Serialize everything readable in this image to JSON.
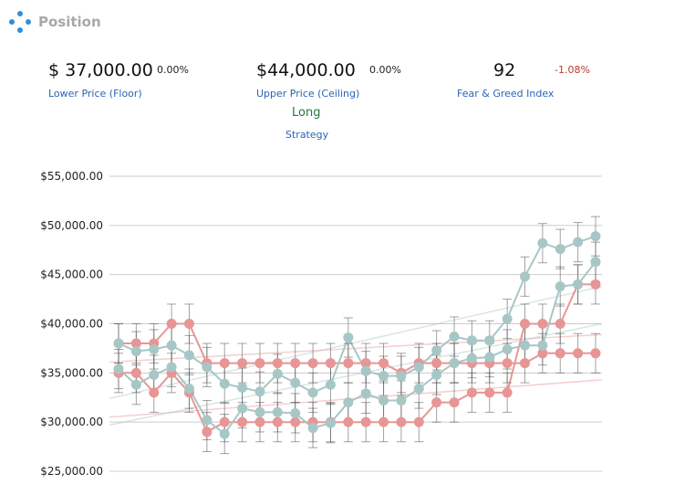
{
  "header": {
    "title": "Position",
    "icon": "position-icon"
  },
  "metrics": {
    "floor": {
      "value": "$ 37,000.00",
      "change": "0.00%",
      "label": "Lower Price (Floor)"
    },
    "ceiling": {
      "value": "$44,000.00",
      "change": "0.00%",
      "label": "Upper Price (Ceiling)"
    },
    "fear_greed": {
      "value": "92",
      "change": "-1.08%",
      "label": "Fear & Greed Index"
    },
    "strategy": {
      "value": "Long",
      "label": "Strategy"
    }
  },
  "colors": {
    "red_series": "#e89595",
    "teal_series": "#a7c7c6",
    "grid": "#cccccc",
    "error_bar": "#555555",
    "accent": "#2a64b8",
    "positive": "#1e7a3a",
    "negative": "#c0392b"
  },
  "chart_data": {
    "type": "line",
    "title": "",
    "xlabel": "",
    "ylabel": "",
    "ylim": [
      25000,
      55000
    ],
    "yticks": [
      "$25,000.00",
      "$30,000.00",
      "$35,000.00",
      "$40,000.00",
      "$45,000.00",
      "$50,000.00",
      "$55,000.00"
    ],
    "ytick_values": [
      25000,
      30000,
      35000,
      40000,
      45000,
      50000,
      55000
    ],
    "x": [
      1,
      2,
      3,
      4,
      5,
      6,
      7,
      8,
      9,
      10,
      11,
      12,
      13,
      14,
      15,
      16,
      17,
      18,
      19,
      20,
      21,
      22,
      23,
      24,
      25,
      26,
      27,
      28
    ],
    "error_bar": 2000,
    "grid": "horizontal",
    "legend": "none",
    "series": [
      {
        "color": "#e89595",
        "values": [
          38000,
          38000,
          38000,
          40000,
          40000,
          36000,
          36000,
          36000,
          36000,
          36000,
          36000,
          36000,
          36000,
          36000,
          36000,
          36000,
          35000,
          36000,
          36000,
          36000,
          36000,
          36000,
          36000,
          36000,
          37000,
          37000,
          37000,
          37000
        ]
      },
      {
        "color": "#e89595",
        "values": [
          35000,
          35000,
          33000,
          35000,
          33000,
          29000,
          30000,
          30000,
          30000,
          30000,
          30000,
          30000,
          30000,
          30000,
          30000,
          30000,
          30000,
          30000,
          32000,
          32000,
          33000,
          33000,
          33000,
          40000,
          40000,
          40000,
          44000,
          44000
        ]
      },
      {
        "color": "#a7c7c6",
        "values": [
          38000,
          37200,
          37400,
          37800,
          36800,
          35600,
          33900,
          33500,
          33100,
          34900,
          34000,
          33000,
          33800,
          38600,
          35200,
          34700,
          34700,
          35600,
          37300,
          38700,
          38300,
          38300,
          40500,
          44800,
          48200,
          47600,
          48300,
          48900
        ]
      },
      {
        "color": "#a7c7c6",
        "values": [
          35400,
          33800,
          34800,
          35600,
          33400,
          30200,
          28800,
          31400,
          31000,
          31000,
          30900,
          29400,
          29900,
          32000,
          32900,
          32200,
          32200,
          33400,
          34800,
          36000,
          36500,
          36600,
          37400,
          37800,
          37800,
          43800,
          44000,
          46300
        ]
      }
    ],
    "trendlines": [
      {
        "color": "#e89595",
        "from": 30500,
        "to": 34300
      },
      {
        "color": "#e89595",
        "from": 36100,
        "to": 38900
      },
      {
        "color": "#a7c7c6",
        "from": 32400,
        "to": 43800
      },
      {
        "color": "#a7c7c6",
        "from": 29700,
        "to": 40000
      }
    ]
  }
}
